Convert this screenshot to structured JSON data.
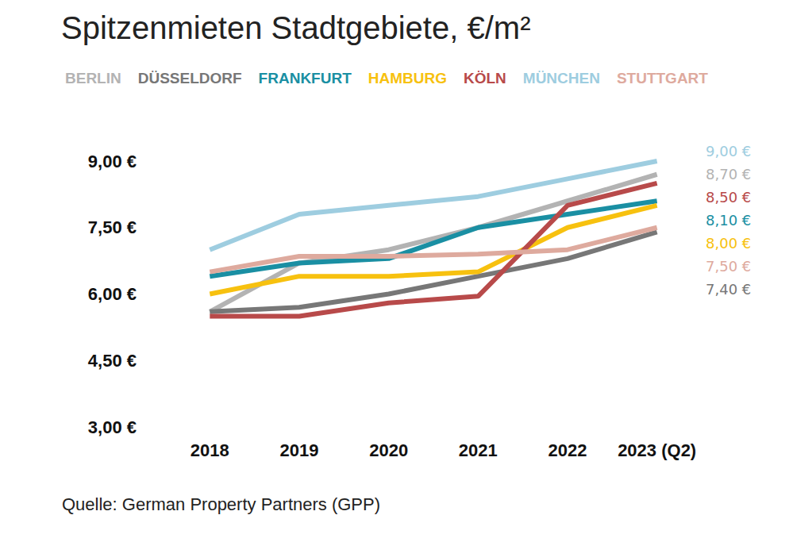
{
  "chart_data": {
    "type": "line",
    "title": "Spitzenmieten Stadtgebiete, €/m²",
    "source": "Quelle: German Property Partners (GPP)",
    "categories": [
      "2018",
      "2019",
      "2020",
      "2021",
      "2022",
      "2023 (Q2)"
    ],
    "ylim": [
      3,
      9
    ],
    "yticks": [
      {
        "value": 3,
        "label": "3,00 €"
      },
      {
        "value": 4.5,
        "label": "4,50 €"
      },
      {
        "value": 6,
        "label": "6,00 €"
      },
      {
        "value": 7.5,
        "label": "7,50 €"
      },
      {
        "value": 9,
        "label": "9,00 €"
      }
    ],
    "grid": false,
    "legend": "top",
    "series": [
      {
        "name": "BERLIN",
        "color": "#b3b3b3",
        "values": [
          5.6,
          6.7,
          7.0,
          7.5,
          8.1,
          8.7
        ],
        "value_labels": [
          null,
          null,
          null,
          null,
          null,
          "8,70 €"
        ]
      },
      {
        "name": "DÜSSELDORF",
        "color": "#777777",
        "values": [
          5.6,
          5.7,
          6.0,
          6.4,
          6.8,
          7.4
        ],
        "value_labels": [
          null,
          null,
          null,
          null,
          null,
          "7,40 €"
        ]
      },
      {
        "name": "FRANKFURT",
        "color": "#1a8fa3",
        "values": [
          6.4,
          6.7,
          6.8,
          7.5,
          7.8,
          8.1
        ],
        "value_labels": [
          null,
          null,
          null,
          null,
          null,
          "8,10 €"
        ]
      },
      {
        "name": "HAMBURG",
        "color": "#f7c10f",
        "values": [
          6.0,
          6.4,
          6.4,
          6.5,
          7.5,
          8.0
        ],
        "value_labels": [
          null,
          null,
          null,
          null,
          null,
          "8,00 €"
        ]
      },
      {
        "name": "KÖLN",
        "color": "#b84a4a",
        "values": [
          5.5,
          5.5,
          5.8,
          5.95,
          8.0,
          8.5
        ],
        "value_labels": [
          null,
          null,
          null,
          null,
          null,
          "8,50 €"
        ]
      },
      {
        "name": "MÜNCHEN",
        "color": "#9ecde0",
        "values": [
          7.0,
          7.8,
          8.0,
          8.2,
          8.6,
          9.0
        ],
        "value_labels": [
          null,
          null,
          null,
          null,
          null,
          "9,00 €"
        ]
      },
      {
        "name": "STUTTGART",
        "color": "#deaa9e",
        "values": [
          6.5,
          6.85,
          6.85,
          6.9,
          7.0,
          7.5
        ],
        "value_labels": [
          null,
          null,
          null,
          null,
          null,
          "7,50 €"
        ]
      }
    ]
  }
}
